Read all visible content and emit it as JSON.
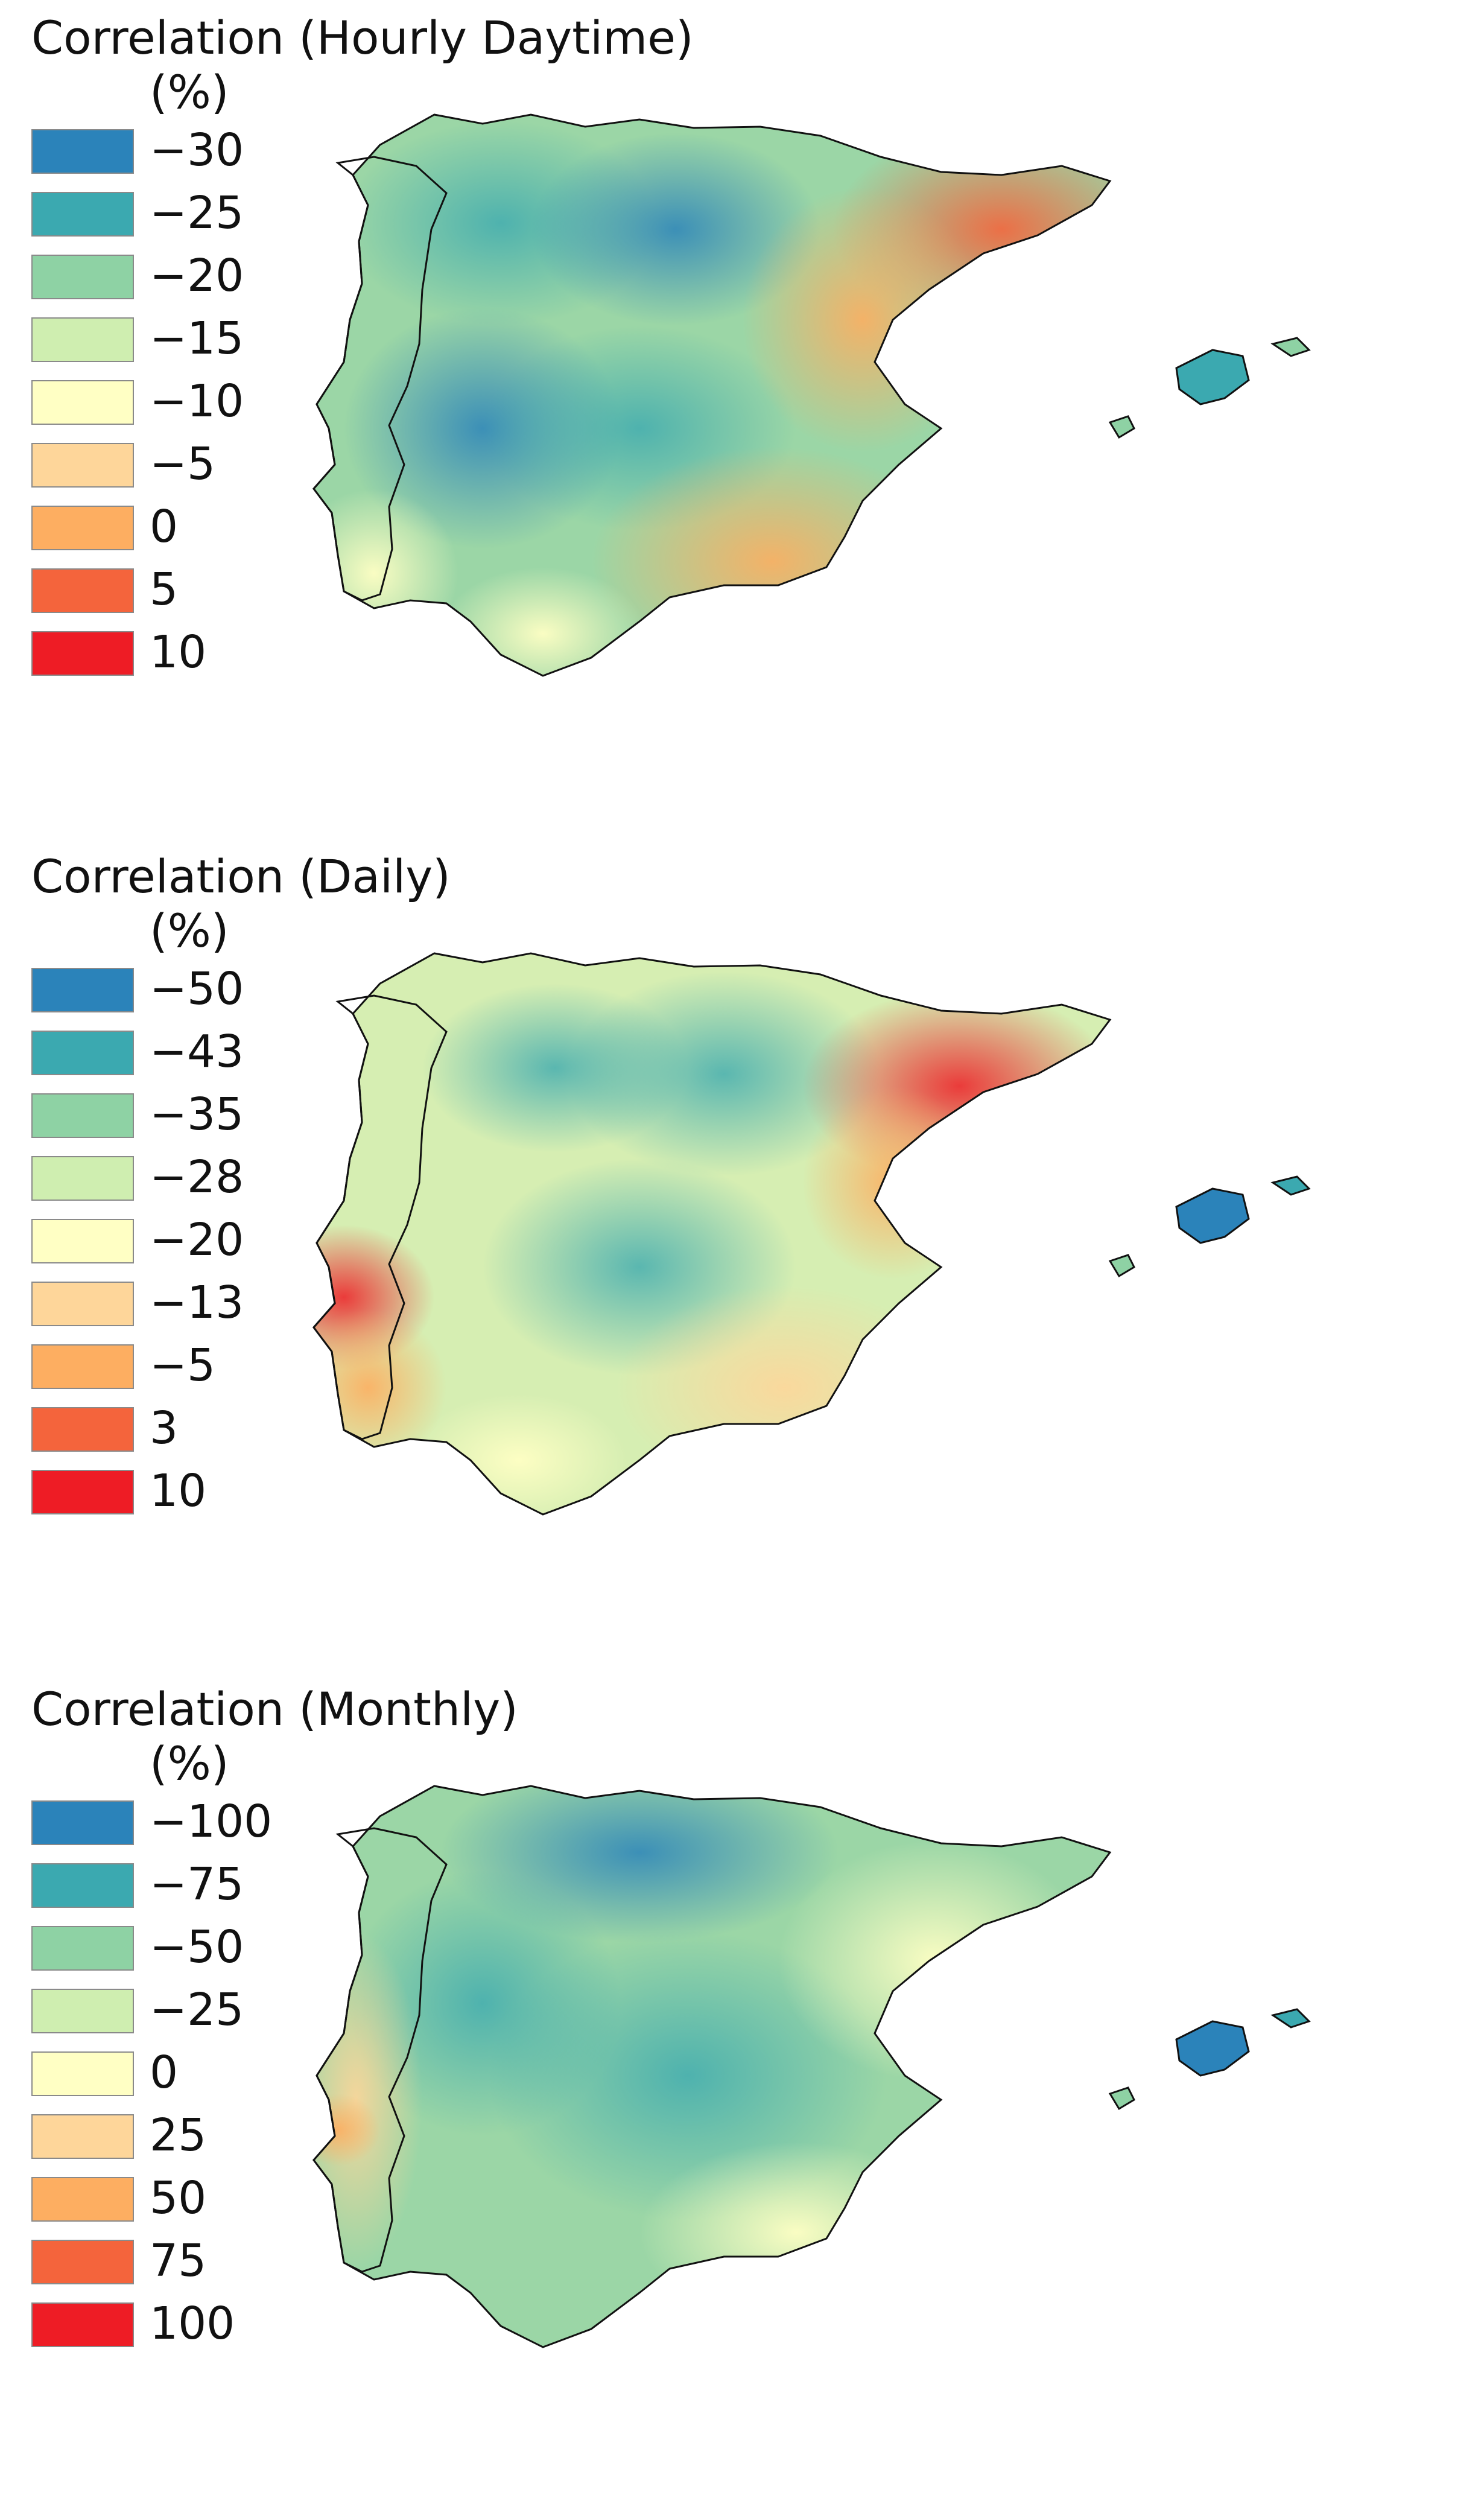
{
  "panels": [
    {
      "title": "Correlation (Hourly Daytime)",
      "unit": "(%)",
      "legend": [
        {
          "label": "−30",
          "color": "#2b83ba"
        },
        {
          "label": "−25",
          "color": "#3ba9b0"
        },
        {
          "label": "−20",
          "color": "#8ed2a4"
        },
        {
          "label": "−15",
          "color": "#cfeeb0"
        },
        {
          "label": "−10",
          "color": "#ffffc4"
        },
        {
          "label": "−5",
          "color": "#fed69a"
        },
        {
          "label": "0",
          "color": "#fdae61"
        },
        {
          "label": "5",
          "color": "#f4643c"
        },
        {
          "label": "10",
          "color": "#ee1c25"
        }
      ],
      "hotspots": [
        {
          "region": "northwest",
          "color": "#3ba9b0"
        },
        {
          "region": "north-central",
          "color": "#2b83ba"
        },
        {
          "region": "west-central",
          "color": "#2b83ba"
        },
        {
          "region": "northeast",
          "color": "#f4643c"
        },
        {
          "region": "east",
          "color": "#fdae61"
        },
        {
          "region": "southeast",
          "color": "#fdae61"
        },
        {
          "region": "balearics",
          "color": "#3ba9b0"
        }
      ]
    },
    {
      "title": "Correlation (Daily)",
      "unit": "(%)",
      "legend": [
        {
          "label": "−50",
          "color": "#2b83ba"
        },
        {
          "label": "−43",
          "color": "#3ba9b0"
        },
        {
          "label": "−35",
          "color": "#8ed2a4"
        },
        {
          "label": "−28",
          "color": "#cfeeb0"
        },
        {
          "label": "−20",
          "color": "#ffffc4"
        },
        {
          "label": "−13",
          "color": "#fed69a"
        },
        {
          "label": "−5",
          "color": "#fdae61"
        },
        {
          "label": "3",
          "color": "#f4643c"
        },
        {
          "label": "10",
          "color": "#ee1c25"
        }
      ],
      "hotspots": [
        {
          "region": "north-central",
          "color": "#3ba9b0"
        },
        {
          "region": "northeast",
          "color": "#ee1c25"
        },
        {
          "region": "lisbon",
          "color": "#f4643c"
        },
        {
          "region": "southwest",
          "color": "#fdae61"
        },
        {
          "region": "southeast",
          "color": "#fed69a"
        },
        {
          "region": "balearics",
          "color": "#2b83ba"
        }
      ]
    },
    {
      "title": "Correlation (Monthly)",
      "unit": "(%)",
      "legend": [
        {
          "label": "−100",
          "color": "#2b83ba"
        },
        {
          "label": "−75",
          "color": "#3ba9b0"
        },
        {
          "label": "−50",
          "color": "#8ed2a4"
        },
        {
          "label": "−25",
          "color": "#cfeeb0"
        },
        {
          "label": "0",
          "color": "#ffffc4"
        },
        {
          "label": "25",
          "color": "#fed69a"
        },
        {
          "label": "50",
          "color": "#fdae61"
        },
        {
          "label": "75",
          "color": "#f4643c"
        },
        {
          "label": "100",
          "color": "#ee1c25"
        }
      ],
      "hotspots": [
        {
          "region": "north-central",
          "color": "#2b83ba"
        },
        {
          "region": "west-central",
          "color": "#3ba9b0"
        },
        {
          "region": "center",
          "color": "#3ba9b0"
        },
        {
          "region": "lisbon",
          "color": "#fdae61"
        },
        {
          "region": "northeast",
          "color": "#ffffc4"
        },
        {
          "region": "balearics",
          "color": "#2b83ba"
        }
      ]
    }
  ]
}
